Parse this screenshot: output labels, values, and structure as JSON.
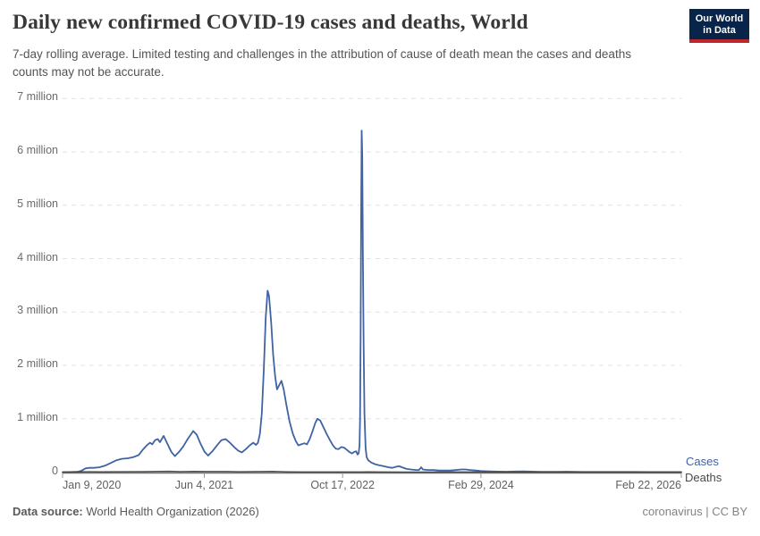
{
  "header": {
    "title": "Daily new confirmed COVID-19 cases and deaths, World",
    "subtitle": "7-day rolling average. Limited testing and challenges in the attribution of cause of death mean the cases and deaths counts may not be accurate.",
    "logo": {
      "line1": "Our World",
      "line2": "in Data",
      "bg_color": "#082449",
      "accent_color": "#C0272D"
    }
  },
  "legend": {
    "cases_label": "Cases",
    "deaths_label": "Deaths"
  },
  "footer": {
    "datasource_label": "Data source:",
    "datasource_value": " World Health Organization (2026)",
    "right_text": "coronavirus | CC BY"
  },
  "colors": {
    "cases": "#3F63A3",
    "deaths": "#4A4A4A",
    "grid": "#E1E1E1",
    "axis": "#787878",
    "tick_mark": "#9A9A9A"
  },
  "chart_data": {
    "type": "line",
    "title": "Daily new confirmed COVID-19 cases and deaths, World",
    "xlabel": "",
    "ylabel": "",
    "unit": "millions per day",
    "x_range": [
      "2020-01-09",
      "2026-02-22"
    ],
    "ylim": [
      0,
      7
    ],
    "grid": "dashed-horizontal",
    "legend_position": "right-of-line-end",
    "y_ticks": [
      {
        "label": "0",
        "value": 0
      },
      {
        "label": "1 million",
        "value": 1
      },
      {
        "label": "2 million",
        "value": 2
      },
      {
        "label": "3 million",
        "value": 3
      },
      {
        "label": "4 million",
        "value": 4
      },
      {
        "label": "5 million",
        "value": 5
      },
      {
        "label": "6 million",
        "value": 6
      },
      {
        "label": "7 million",
        "value": 7
      }
    ],
    "x_ticks": [
      {
        "label": "Jan 9, 2020",
        "date": "2020-01-09"
      },
      {
        "label": "Jun 4, 2021",
        "date": "2021-06-04"
      },
      {
        "label": "Oct 17, 2022",
        "date": "2022-10-17"
      },
      {
        "label": "Feb 29, 2024",
        "date": "2024-02-29"
      },
      {
        "label": "Feb 22, 2026",
        "date": "2026-02-22"
      }
    ],
    "series": [
      {
        "name": "Cases",
        "color": "#3F63A3",
        "points": [
          [
            "2020-01-09",
            0.0
          ],
          [
            "2020-02-01",
            0.002
          ],
          [
            "2020-03-01",
            0.005
          ],
          [
            "2020-03-15",
            0.02
          ],
          [
            "2020-04-01",
            0.07
          ],
          [
            "2020-04-15",
            0.08
          ],
          [
            "2020-05-01",
            0.08
          ],
          [
            "2020-05-20",
            0.09
          ],
          [
            "2020-06-10",
            0.12
          ],
          [
            "2020-07-01",
            0.17
          ],
          [
            "2020-07-20",
            0.22
          ],
          [
            "2020-08-10",
            0.25
          ],
          [
            "2020-09-01",
            0.26
          ],
          [
            "2020-09-20",
            0.28
          ],
          [
            "2020-10-10",
            0.32
          ],
          [
            "2020-10-25",
            0.42
          ],
          [
            "2020-11-08",
            0.5
          ],
          [
            "2020-11-20",
            0.55
          ],
          [
            "2020-11-28",
            0.52
          ],
          [
            "2020-12-08",
            0.6
          ],
          [
            "2020-12-18",
            0.62
          ],
          [
            "2020-12-26",
            0.56
          ],
          [
            "2021-01-08",
            0.68
          ],
          [
            "2021-01-20",
            0.55
          ],
          [
            "2021-02-05",
            0.38
          ],
          [
            "2021-02-18",
            0.3
          ],
          [
            "2021-03-05",
            0.38
          ],
          [
            "2021-03-20",
            0.48
          ],
          [
            "2021-04-05",
            0.62
          ],
          [
            "2021-04-25",
            0.77
          ],
          [
            "2021-05-08",
            0.7
          ],
          [
            "2021-05-20",
            0.55
          ],
          [
            "2021-06-05",
            0.38
          ],
          [
            "2021-06-18",
            0.31
          ],
          [
            "2021-07-05",
            0.4
          ],
          [
            "2021-07-20",
            0.5
          ],
          [
            "2021-08-05",
            0.6
          ],
          [
            "2021-08-20",
            0.62
          ],
          [
            "2021-09-05",
            0.55
          ],
          [
            "2021-09-20",
            0.47
          ],
          [
            "2021-10-05",
            0.4
          ],
          [
            "2021-10-18",
            0.37
          ],
          [
            "2021-11-01",
            0.43
          ],
          [
            "2021-11-15",
            0.5
          ],
          [
            "2021-11-28",
            0.55
          ],
          [
            "2021-12-08",
            0.51
          ],
          [
            "2021-12-15",
            0.55
          ],
          [
            "2021-12-22",
            0.72
          ],
          [
            "2021-12-29",
            1.1
          ],
          [
            "2022-01-05",
            1.9
          ],
          [
            "2022-01-12",
            2.9
          ],
          [
            "2022-01-19",
            3.4
          ],
          [
            "2022-01-24",
            3.3
          ],
          [
            "2022-02-01",
            2.8
          ],
          [
            "2022-02-08",
            2.2
          ],
          [
            "2022-02-15",
            1.8
          ],
          [
            "2022-02-22",
            1.55
          ],
          [
            "2022-03-01",
            1.62
          ],
          [
            "2022-03-10",
            1.71
          ],
          [
            "2022-03-18",
            1.55
          ],
          [
            "2022-03-28",
            1.25
          ],
          [
            "2022-04-08",
            0.95
          ],
          [
            "2022-04-20",
            0.72
          ],
          [
            "2022-05-01",
            0.58
          ],
          [
            "2022-05-10",
            0.5
          ],
          [
            "2022-05-20",
            0.52
          ],
          [
            "2022-06-01",
            0.54
          ],
          [
            "2022-06-10",
            0.52
          ],
          [
            "2022-06-20",
            0.62
          ],
          [
            "2022-07-01",
            0.78
          ],
          [
            "2022-07-10",
            0.92
          ],
          [
            "2022-07-18",
            1.0
          ],
          [
            "2022-07-28",
            0.97
          ],
          [
            "2022-08-08",
            0.85
          ],
          [
            "2022-08-20",
            0.72
          ],
          [
            "2022-09-01",
            0.6
          ],
          [
            "2022-09-12",
            0.5
          ],
          [
            "2022-09-22",
            0.44
          ],
          [
            "2022-10-02",
            0.43
          ],
          [
            "2022-10-12",
            0.47
          ],
          [
            "2022-10-22",
            0.46
          ],
          [
            "2022-11-01",
            0.42
          ],
          [
            "2022-11-10",
            0.38
          ],
          [
            "2022-11-20",
            0.35
          ],
          [
            "2022-11-28",
            0.38
          ],
          [
            "2022-12-05",
            0.39
          ],
          [
            "2022-12-10",
            0.33
          ],
          [
            "2022-12-14",
            0.35
          ],
          [
            "2022-12-17",
            0.5
          ],
          [
            "2022-12-19",
            1.0
          ],
          [
            "2022-12-21",
            2.5
          ],
          [
            "2022-12-23",
            4.8
          ],
          [
            "2022-12-25",
            6.4
          ],
          [
            "2022-12-27",
            5.9
          ],
          [
            "2022-12-29",
            4.2
          ],
          [
            "2023-01-01",
            2.4
          ],
          [
            "2023-01-04",
            1.1
          ],
          [
            "2023-01-08",
            0.45
          ],
          [
            "2023-01-12",
            0.28
          ],
          [
            "2023-01-18",
            0.22
          ],
          [
            "2023-01-28",
            0.18
          ],
          [
            "2023-02-10",
            0.15
          ],
          [
            "2023-02-25",
            0.13
          ],
          [
            "2023-03-15",
            0.11
          ],
          [
            "2023-04-01",
            0.09
          ],
          [
            "2023-04-15",
            0.08
          ],
          [
            "2023-04-28",
            0.1
          ],
          [
            "2023-05-10",
            0.11
          ],
          [
            "2023-05-20",
            0.09
          ],
          [
            "2023-06-05",
            0.06
          ],
          [
            "2023-06-20",
            0.05
          ],
          [
            "2023-07-10",
            0.04
          ],
          [
            "2023-07-20",
            0.04
          ],
          [
            "2023-07-28",
            0.09
          ],
          [
            "2023-08-03",
            0.05
          ],
          [
            "2023-08-20",
            0.04
          ],
          [
            "2023-09-10",
            0.04
          ],
          [
            "2023-10-01",
            0.03
          ],
          [
            "2023-10-20",
            0.03
          ],
          [
            "2023-11-10",
            0.03
          ],
          [
            "2023-12-01",
            0.04
          ],
          [
            "2023-12-20",
            0.05
          ],
          [
            "2024-01-05",
            0.05
          ],
          [
            "2024-01-20",
            0.04
          ],
          [
            "2024-02-10",
            0.03
          ],
          [
            "2024-03-01",
            0.02
          ],
          [
            "2024-04-01",
            0.015
          ],
          [
            "2024-05-01",
            0.01
          ],
          [
            "2024-06-01",
            0.008
          ],
          [
            "2024-07-01",
            0.012
          ],
          [
            "2024-08-01",
            0.015
          ],
          [
            "2024-09-01",
            0.01
          ],
          [
            "2024-10-01",
            0.007
          ],
          [
            "2024-11-01",
            0.006
          ],
          [
            "2024-12-01",
            0.007
          ],
          [
            "2025-01-01",
            0.008
          ],
          [
            "2025-02-01",
            0.006
          ],
          [
            "2025-03-01",
            0.004
          ],
          [
            "2025-05-01",
            0.003
          ],
          [
            "2025-07-01",
            0.004
          ],
          [
            "2025-09-01",
            0.003
          ],
          [
            "2025-11-01",
            0.002
          ],
          [
            "2026-01-01",
            0.002
          ],
          [
            "2026-02-22",
            0.002
          ]
        ]
      },
      {
        "name": "Deaths",
        "color": "#4A4A4A",
        "points": [
          [
            "2020-01-09",
            0.0
          ],
          [
            "2020-04-15",
            0.007
          ],
          [
            "2020-06-01",
            0.005
          ],
          [
            "2020-08-01",
            0.006
          ],
          [
            "2020-11-01",
            0.008
          ],
          [
            "2021-01-26",
            0.0145
          ],
          [
            "2021-03-10",
            0.009
          ],
          [
            "2021-04-28",
            0.013
          ],
          [
            "2021-06-10",
            0.01
          ],
          [
            "2021-08-20",
            0.01
          ],
          [
            "2021-10-10",
            0.007
          ],
          [
            "2021-11-20",
            0.008
          ],
          [
            "2022-02-07",
            0.011
          ],
          [
            "2022-04-01",
            0.005
          ],
          [
            "2022-06-01",
            0.0015
          ],
          [
            "2022-08-01",
            0.0025
          ],
          [
            "2022-10-01",
            0.0015
          ],
          [
            "2022-12-25",
            0.002
          ],
          [
            "2023-01-15",
            0.004
          ],
          [
            "2023-03-01",
            0.0015
          ],
          [
            "2023-06-01",
            0.0008
          ],
          [
            "2024-01-01",
            0.001
          ],
          [
            "2024-06-01",
            0.0004
          ],
          [
            "2025-01-01",
            0.0002
          ],
          [
            "2026-02-22",
            0.0001
          ]
        ]
      }
    ]
  }
}
